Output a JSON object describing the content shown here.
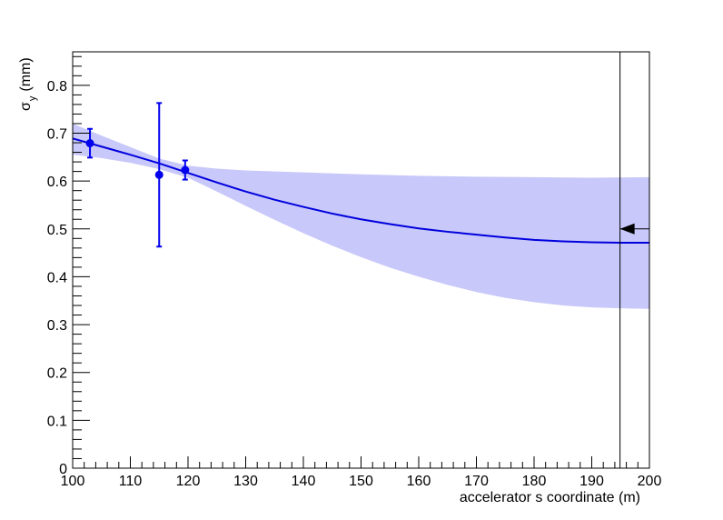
{
  "chart_data": {
    "type": "line",
    "xlabel": "accelerator s coordinate (m)",
    "ylabel_main": "σ",
    "ylabel_sub": "y",
    "ylabel_unit": "(mm)",
    "xlim": [
      100,
      200
    ],
    "ylim": [
      0,
      0.87
    ],
    "x_ticks": [
      "100",
      "110",
      "120",
      "130",
      "140",
      "150",
      "160",
      "170",
      "180",
      "190",
      "200"
    ],
    "y_ticks": [
      "0",
      "0.1",
      "0.2",
      "0.3",
      "0.4",
      "0.5",
      "0.6",
      "0.7",
      "0.8"
    ],
    "grid": false,
    "colors": {
      "line": "#0000dd",
      "band": "#c8c8fa",
      "points": "#0000ee",
      "marker": "#000000"
    },
    "fit_line": {
      "x": [
        100,
        105,
        110,
        115,
        120,
        125,
        130,
        135,
        140,
        145,
        150,
        155,
        160,
        165,
        170,
        175,
        180,
        185,
        190,
        195,
        200
      ],
      "y": [
        0.689,
        0.672,
        0.655,
        0.637,
        0.617,
        0.597,
        0.578,
        0.561,
        0.546,
        0.532,
        0.52,
        0.51,
        0.501,
        0.494,
        0.488,
        0.482,
        0.477,
        0.474,
        0.472,
        0.471,
        0.471
      ]
    },
    "band_upper": {
      "x": [
        100,
        105,
        110,
        115,
        120,
        125,
        130,
        140,
        150,
        160,
        170,
        180,
        190,
        200
      ],
      "y": [
        0.72,
        0.695,
        0.671,
        0.647,
        0.632,
        0.626,
        0.622,
        0.618,
        0.614,
        0.611,
        0.609,
        0.608,
        0.607,
        0.608
      ]
    },
    "band_lower": {
      "x": [
        100,
        105,
        110,
        115,
        120,
        125,
        130,
        135,
        140,
        145,
        150,
        155,
        160,
        165,
        170,
        175,
        180,
        185,
        190,
        195,
        200
      ],
      "y": [
        0.655,
        0.648,
        0.638,
        0.625,
        0.607,
        0.578,
        0.548,
        0.519,
        0.491,
        0.465,
        0.441,
        0.419,
        0.4,
        0.383,
        0.368,
        0.356,
        0.347,
        0.34,
        0.336,
        0.334,
        0.333
      ]
    },
    "points": [
      {
        "x": 103,
        "y": 0.679,
        "err": 0.03
      },
      {
        "x": 115,
        "y": 0.613,
        "err": 0.15
      },
      {
        "x": 119.5,
        "y": 0.623,
        "err": 0.02
      }
    ],
    "marker_line_x": 194.9,
    "marker_arrow": {
      "x": 200,
      "y": 0.5
    }
  }
}
